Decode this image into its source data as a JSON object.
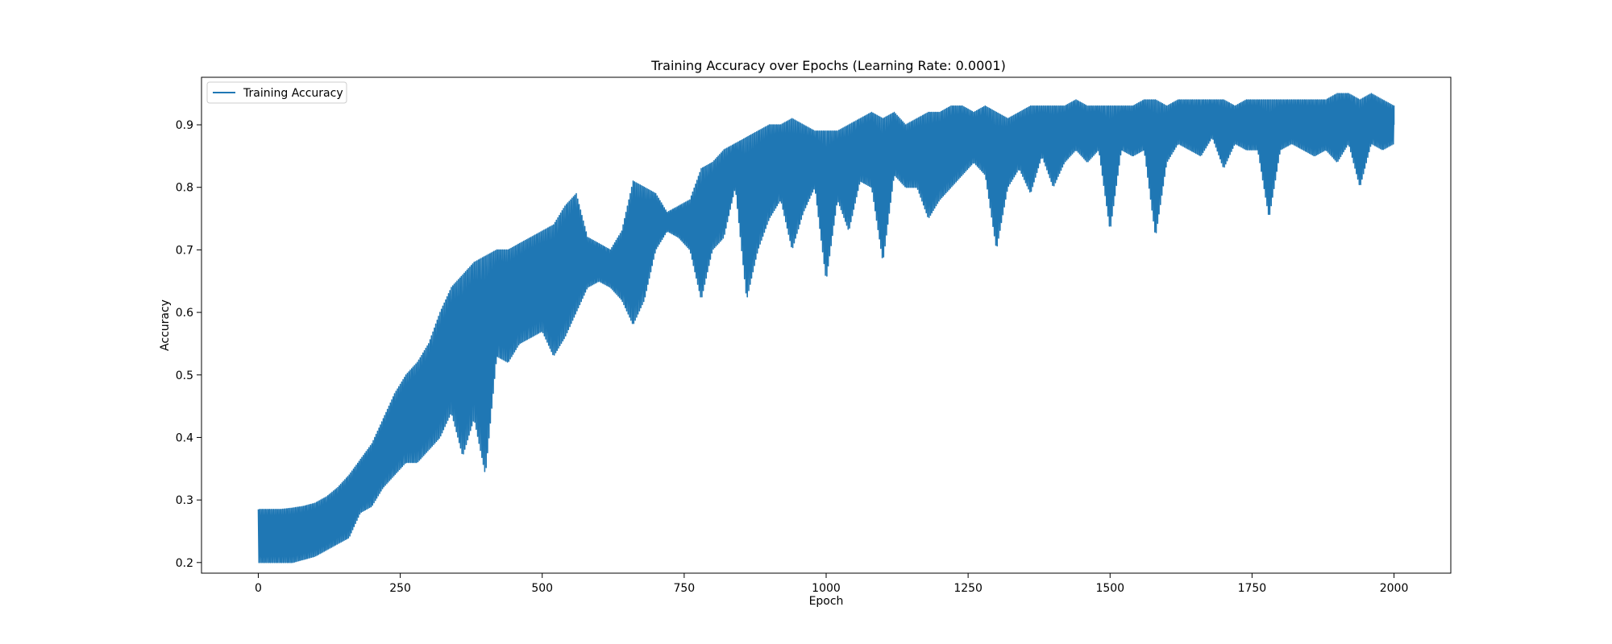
{
  "chart_data": {
    "type": "line",
    "title": "Training Accuracy over Epochs (Learning Rate: 0.0001)",
    "xlabel": "Epoch",
    "ylabel": "Accuracy",
    "xlim": [
      -100,
      2100
    ],
    "ylim": [
      0.183,
      0.976
    ],
    "x_ticks": [
      0,
      250,
      500,
      750,
      1000,
      1250,
      1500,
      1750,
      2000
    ],
    "y_ticks": [
      0.2,
      0.3,
      0.4,
      0.5,
      0.6,
      0.7,
      0.8,
      0.9
    ],
    "grid": false,
    "legend_position": "upper left",
    "series": [
      {
        "name": "Training Accuracy",
        "color": "#1f77b4",
        "x": [
          0,
          20,
          40,
          60,
          80,
          100,
          120,
          140,
          160,
          180,
          200,
          220,
          240,
          260,
          280,
          300,
          320,
          340,
          360,
          380,
          400,
          420,
          440,
          460,
          480,
          500,
          520,
          540,
          560,
          580,
          600,
          620,
          640,
          660,
          680,
          700,
          720,
          740,
          760,
          780,
          800,
          820,
          840,
          860,
          880,
          900,
          920,
          940,
          960,
          980,
          1000,
          1020,
          1040,
          1060,
          1080,
          1100,
          1120,
          1140,
          1160,
          1180,
          1200,
          1220,
          1240,
          1260,
          1280,
          1300,
          1320,
          1340,
          1360,
          1380,
          1400,
          1420,
          1440,
          1460,
          1480,
          1500,
          1520,
          1540,
          1560,
          1580,
          1600,
          1620,
          1640,
          1660,
          1680,
          1700,
          1720,
          1740,
          1760,
          1780,
          1800,
          1820,
          1840,
          1860,
          1880,
          1900,
          1920,
          1940,
          1960,
          1980,
          2000
        ],
        "upper": [
          0.285,
          0.285,
          0.285,
          0.287,
          0.29,
          0.295,
          0.305,
          0.32,
          0.34,
          0.365,
          0.39,
          0.43,
          0.47,
          0.5,
          0.52,
          0.55,
          0.6,
          0.64,
          0.66,
          0.68,
          0.69,
          0.7,
          0.7,
          0.71,
          0.72,
          0.73,
          0.74,
          0.77,
          0.79,
          0.72,
          0.71,
          0.7,
          0.73,
          0.81,
          0.8,
          0.79,
          0.76,
          0.77,
          0.78,
          0.83,
          0.84,
          0.86,
          0.87,
          0.88,
          0.89,
          0.9,
          0.9,
          0.91,
          0.9,
          0.89,
          0.89,
          0.89,
          0.9,
          0.91,
          0.92,
          0.91,
          0.92,
          0.9,
          0.91,
          0.92,
          0.92,
          0.93,
          0.93,
          0.92,
          0.93,
          0.92,
          0.91,
          0.92,
          0.93,
          0.93,
          0.93,
          0.93,
          0.94,
          0.93,
          0.93,
          0.93,
          0.93,
          0.93,
          0.94,
          0.94,
          0.93,
          0.94,
          0.94,
          0.94,
          0.94,
          0.94,
          0.93,
          0.94,
          0.94,
          0.94,
          0.94,
          0.94,
          0.94,
          0.94,
          0.94,
          0.95,
          0.95,
          0.94,
          0.95,
          0.94,
          0.93
        ],
        "lower": [
          0.2,
          0.2,
          0.2,
          0.2,
          0.205,
          0.21,
          0.22,
          0.23,
          0.24,
          0.28,
          0.29,
          0.32,
          0.34,
          0.36,
          0.36,
          0.38,
          0.4,
          0.44,
          0.37,
          0.43,
          0.34,
          0.53,
          0.52,
          0.55,
          0.56,
          0.57,
          0.53,
          0.56,
          0.6,
          0.64,
          0.65,
          0.64,
          0.62,
          0.58,
          0.62,
          0.7,
          0.73,
          0.72,
          0.7,
          0.62,
          0.7,
          0.72,
          0.8,
          0.62,
          0.7,
          0.75,
          0.78,
          0.7,
          0.76,
          0.8,
          0.65,
          0.78,
          0.73,
          0.81,
          0.8,
          0.68,
          0.82,
          0.8,
          0.8,
          0.75,
          0.78,
          0.8,
          0.82,
          0.84,
          0.82,
          0.7,
          0.8,
          0.83,
          0.79,
          0.85,
          0.8,
          0.84,
          0.86,
          0.84,
          0.86,
          0.73,
          0.86,
          0.85,
          0.86,
          0.72,
          0.84,
          0.87,
          0.86,
          0.85,
          0.88,
          0.83,
          0.87,
          0.86,
          0.86,
          0.75,
          0.86,
          0.87,
          0.86,
          0.85,
          0.86,
          0.84,
          0.87,
          0.8,
          0.87,
          0.86,
          0.87
        ]
      }
    ]
  }
}
